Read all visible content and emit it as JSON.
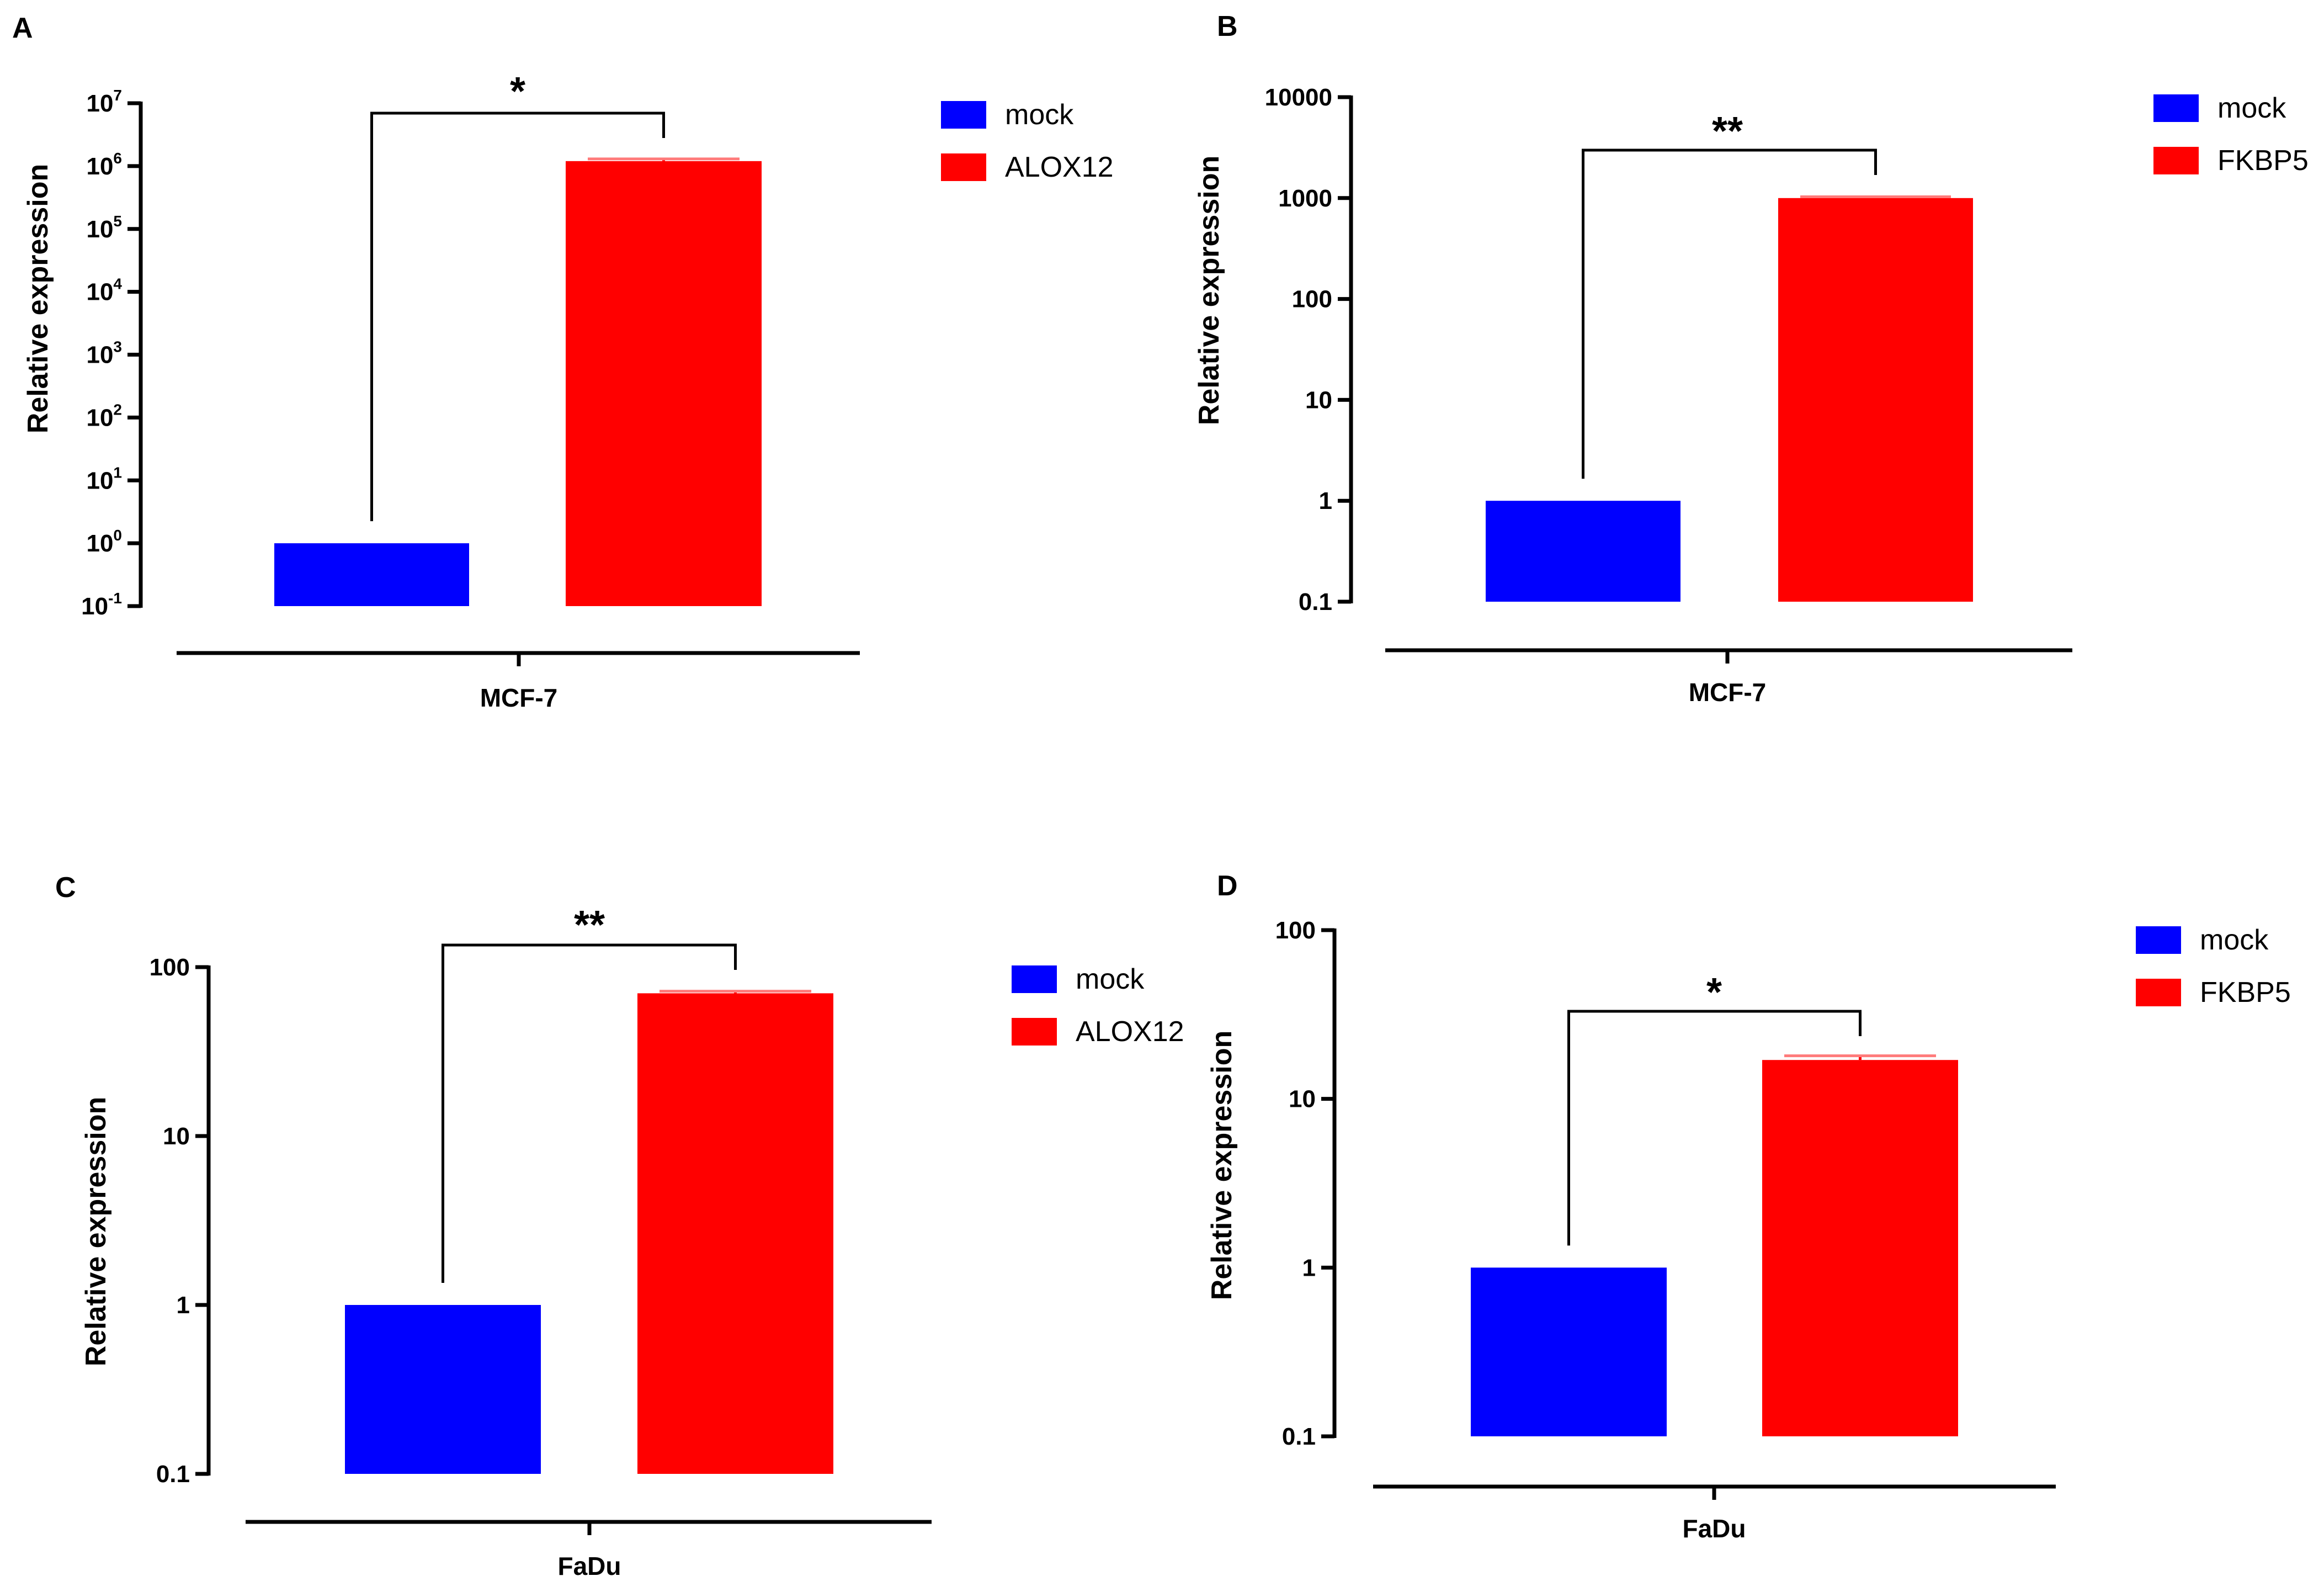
{
  "figure": {
    "panel_count": 4
  },
  "chart_data": [
    {
      "panel": "A",
      "type": "bar",
      "scale": "log",
      "ylabel": "Relative expression",
      "xlabel": "MCF-7",
      "ylim": [
        0.1,
        10000000
      ],
      "ticks": [
        {
          "base": "10",
          "exp": "-1",
          "value": 0.1
        },
        {
          "base": "10",
          "exp": "0",
          "value": 1
        },
        {
          "base": "10",
          "exp": "1",
          "value": 10
        },
        {
          "base": "10",
          "exp": "2",
          "value": 100
        },
        {
          "base": "10",
          "exp": "3",
          "value": 1000
        },
        {
          "base": "10",
          "exp": "4",
          "value": 10000
        },
        {
          "base": "10",
          "exp": "5",
          "value": 100000
        },
        {
          "base": "10",
          "exp": "6",
          "value": 1000000
        },
        {
          "base": "10",
          "exp": "7",
          "value": 10000000
        }
      ],
      "bars": [
        {
          "name": "mock",
          "value": 1,
          "color": "#0000ff"
        },
        {
          "name": "ALOX12",
          "value": 1200000,
          "error": 100000,
          "color": "#ff0000"
        }
      ],
      "legend": [
        "mock",
        "ALOX12"
      ],
      "significance": "*"
    },
    {
      "panel": "B",
      "type": "bar",
      "scale": "log",
      "ylabel": "Relative  expression",
      "xlabel": "MCF-7",
      "ylim": [
        0.1,
        10000
      ],
      "ticks": [
        {
          "label": "0.1",
          "value": 0.1
        },
        {
          "label": "1",
          "value": 1
        },
        {
          "label": "10",
          "value": 10
        },
        {
          "label": "100",
          "value": 100
        },
        {
          "label": "1000",
          "value": 1000
        },
        {
          "label": "10000",
          "value": 10000
        }
      ],
      "bars": [
        {
          "name": "mock",
          "value": 1,
          "color": "#0000ff"
        },
        {
          "name": "FKBP5",
          "value": 1000,
          "error": 30,
          "color": "#ff0000"
        }
      ],
      "legend": [
        "mock",
        "FKBP5"
      ],
      "significance": "**"
    },
    {
      "panel": "C",
      "type": "bar",
      "scale": "log",
      "ylabel": "Relative  expression",
      "xlabel": "FaDu",
      "ylim": [
        0.1,
        100
      ],
      "ticks": [
        {
          "label": "0.1",
          "value": 0.1
        },
        {
          "label": "1",
          "value": 1
        },
        {
          "label": "10",
          "value": 10
        },
        {
          "label": "100",
          "value": 100
        }
      ],
      "bars": [
        {
          "name": "mock",
          "value": 1,
          "color": "#0000ff"
        },
        {
          "name": "ALOX12",
          "value": 70,
          "error": 2,
          "color": "#ff0000"
        }
      ],
      "legend": [
        "mock",
        "ALOX12"
      ],
      "significance": "**"
    },
    {
      "panel": "D",
      "type": "bar",
      "scale": "log",
      "ylabel": "Relative  expression",
      "xlabel": "FaDu",
      "ylim": [
        0.1,
        100
      ],
      "ticks": [
        {
          "label": "0.1",
          "value": 0.1
        },
        {
          "label": "1",
          "value": 1
        },
        {
          "label": "10",
          "value": 10
        },
        {
          "label": "100",
          "value": 100
        }
      ],
      "bars": [
        {
          "name": "mock",
          "value": 1,
          "color": "#0000ff"
        },
        {
          "name": "FKBP5",
          "value": 17,
          "error": 1,
          "color": "#ff0000"
        }
      ],
      "legend": [
        "mock",
        "FKBP5"
      ],
      "significance": "*"
    }
  ]
}
